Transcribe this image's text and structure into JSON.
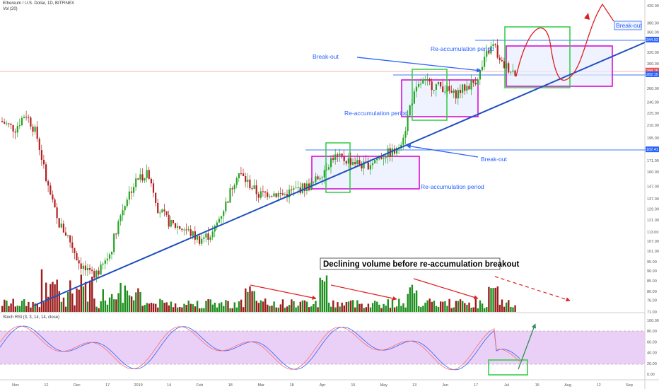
{
  "header": {
    "symbol_line": "Ethereum / U.S. Dollar, 1D, BITFINEX",
    "volume_label": "Vol (20)",
    "stoch_label": "Stoch RSI (3, 3, 14, 14, close)"
  },
  "chart_data": [
    {
      "type": "candlestick",
      "title": "Ethereum / U.S. Dollar, 1D, BITFINEX",
      "scale": "log",
      "ylim": [
        71,
        430
      ],
      "price_ticks": [
        "420.00",
        "380.00",
        "360.00",
        "320.00",
        "300.00",
        "280.00",
        "260.00",
        "240.00",
        "225.00",
        "210.00",
        "195.00",
        "182.00",
        "171.00",
        "160.00",
        "147.00",
        "137.00",
        "129.00",
        "121.00",
        "113.00",
        "107.00",
        "101.00",
        "95.00",
        "90.00",
        "85.00",
        "80.00",
        "76.00",
        "71.00"
      ],
      "price_labels": [
        {
          "value": "344.93",
          "color": "#2962ff"
        },
        {
          "value": "288.15",
          "color": "#ef5350"
        },
        {
          "value": "282.15",
          "color": "#2962ff"
        },
        {
          "value": "182.41",
          "color": "#2962ff"
        }
      ],
      "x_ticks": [
        "Nov",
        "12",
        "Dec",
        "17",
        "2019",
        "14",
        "Feb",
        "18",
        "Mar",
        "18",
        "Apr",
        "15",
        "May",
        "13",
        "Jun",
        "17",
        "Jul",
        "15",
        "Aug",
        "12",
        "Sep"
      ],
      "horizontal_levels": [
        344.93,
        288.15,
        282.15,
        182.41
      ],
      "annotations": [
        "Break-out",
        "Re-accumulation period",
        "Break-out",
        "Re-accumulation period",
        "Break-out",
        "Re-accumulation period",
        "Break-out",
        "Declining volume before re-accumulation breakout"
      ]
    },
    {
      "type": "line",
      "title": "Stoch RSI (3, 3, 14, 14, close)",
      "ylim": [
        0,
        100
      ],
      "y_ticks": [
        "100.00",
        "80.00",
        "60.00",
        "40.00",
        "20.00",
        "0.00"
      ],
      "series": [
        {
          "name": "",
          "color": "#2962ff"
        },
        {
          "name": "",
          "color": "#ff6d6d"
        }
      ]
    }
  ],
  "annotation_text": {
    "breakout_1": "Break-out",
    "breakout_2": "Break-out",
    "breakout_3": "Break-out",
    "reacc_1": "Re-accumulation period",
    "reacc_2": "Re-accumulation period",
    "reacc_3": "Re-accumulation period",
    "volume_note": "Declining volume before re-accumulation breakout"
  },
  "colors": {
    "up": "#26a626",
    "down": "#b22222",
    "trendline": "#1f4fbf",
    "annotation": "#2962ff",
    "magenta_box": "#d400d4",
    "green_box": "#2ecc40",
    "red_arrow": "#e01e1e",
    "stoch_band": "#e6c8f5"
  }
}
